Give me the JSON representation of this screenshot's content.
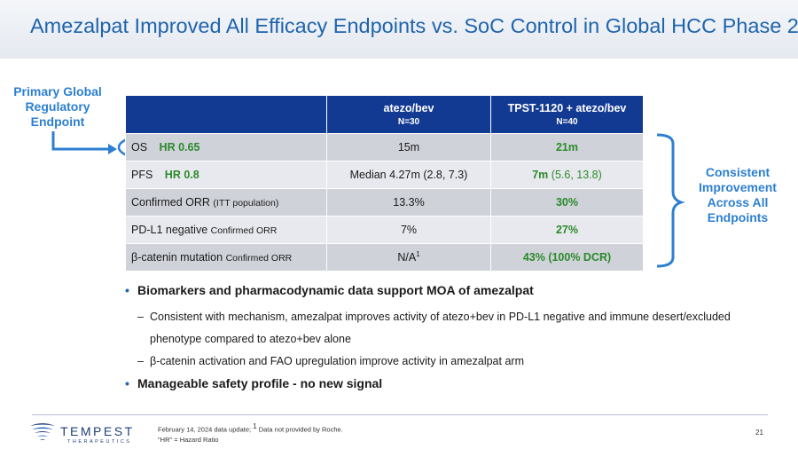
{
  "title": "Amezalpat Improved All Efficacy Endpoints vs. SoC Control in Global HCC Phase 2",
  "callout_left": "Primary Global Regulatory Endpoint",
  "callout_right": "Consistent Improvement Across All Endpoints",
  "table": {
    "columns": [
      {
        "name": "atezo/bev",
        "n": "N=30"
      },
      {
        "name": "TPST-1120 + atezo/bev",
        "n": "N=40"
      }
    ],
    "rows": [
      {
        "label": "OS",
        "qualifier": "",
        "hr": "HR 0.65",
        "control": "15m",
        "treatment": "21m",
        "treatment_ci": ""
      },
      {
        "label": "PFS",
        "qualifier": "",
        "hr": "HR 0.8",
        "control": "Median 4.27m (2.8, 7.3)",
        "treatment": "7m",
        "treatment_ci": " (5.6, 13.8)"
      },
      {
        "label": "Confirmed ORR",
        "qualifier": "(ITT population)",
        "hr": "",
        "control": "13.3%",
        "treatment": "30%",
        "treatment_ci": ""
      },
      {
        "label": "PD-L1 negative",
        "qualifier": "Confirmed ORR",
        "hr": "",
        "control": "7%",
        "treatment": "27%",
        "treatment_ci": ""
      },
      {
        "label": "β-catenin mutation",
        "qualifier": "Confirmed ORR",
        "hr": "",
        "control": "N/A",
        "control_sup": "1",
        "treatment": "43% (100% DCR)",
        "treatment_ci": ""
      }
    ]
  },
  "bullets": [
    {
      "text": "Biomarkers and pharmacodynamic data support MOA of amezalpat",
      "subs": [
        "Consistent with mechanism, amezalpat improves activity of atezo+bev in PD-L1 negative and immune desert/excluded phenotype compared to atezo+bev alone",
        "β-catenin activation and FAO upregulation improve activity in amezalpat arm"
      ]
    },
    {
      "text": "Manageable safety profile -  no new signal",
      "subs": []
    }
  ],
  "footer": {
    "logo_text": "TEMPEST",
    "logo_subtext": "THERAPEUTICS",
    "footnote_prefix": "February 14, 2024 data update;",
    "footnote_sup": "1",
    "footnote_suffix": "Data not provided by Roche.",
    "footnote2": "\"HR\" = Hazard Ratio",
    "page_number": "21"
  },
  "colors": {
    "title": "#1f64ad",
    "table_header": "#133a93",
    "callout": "#2d7fd0",
    "highlight_green": "#2a8a2a"
  }
}
